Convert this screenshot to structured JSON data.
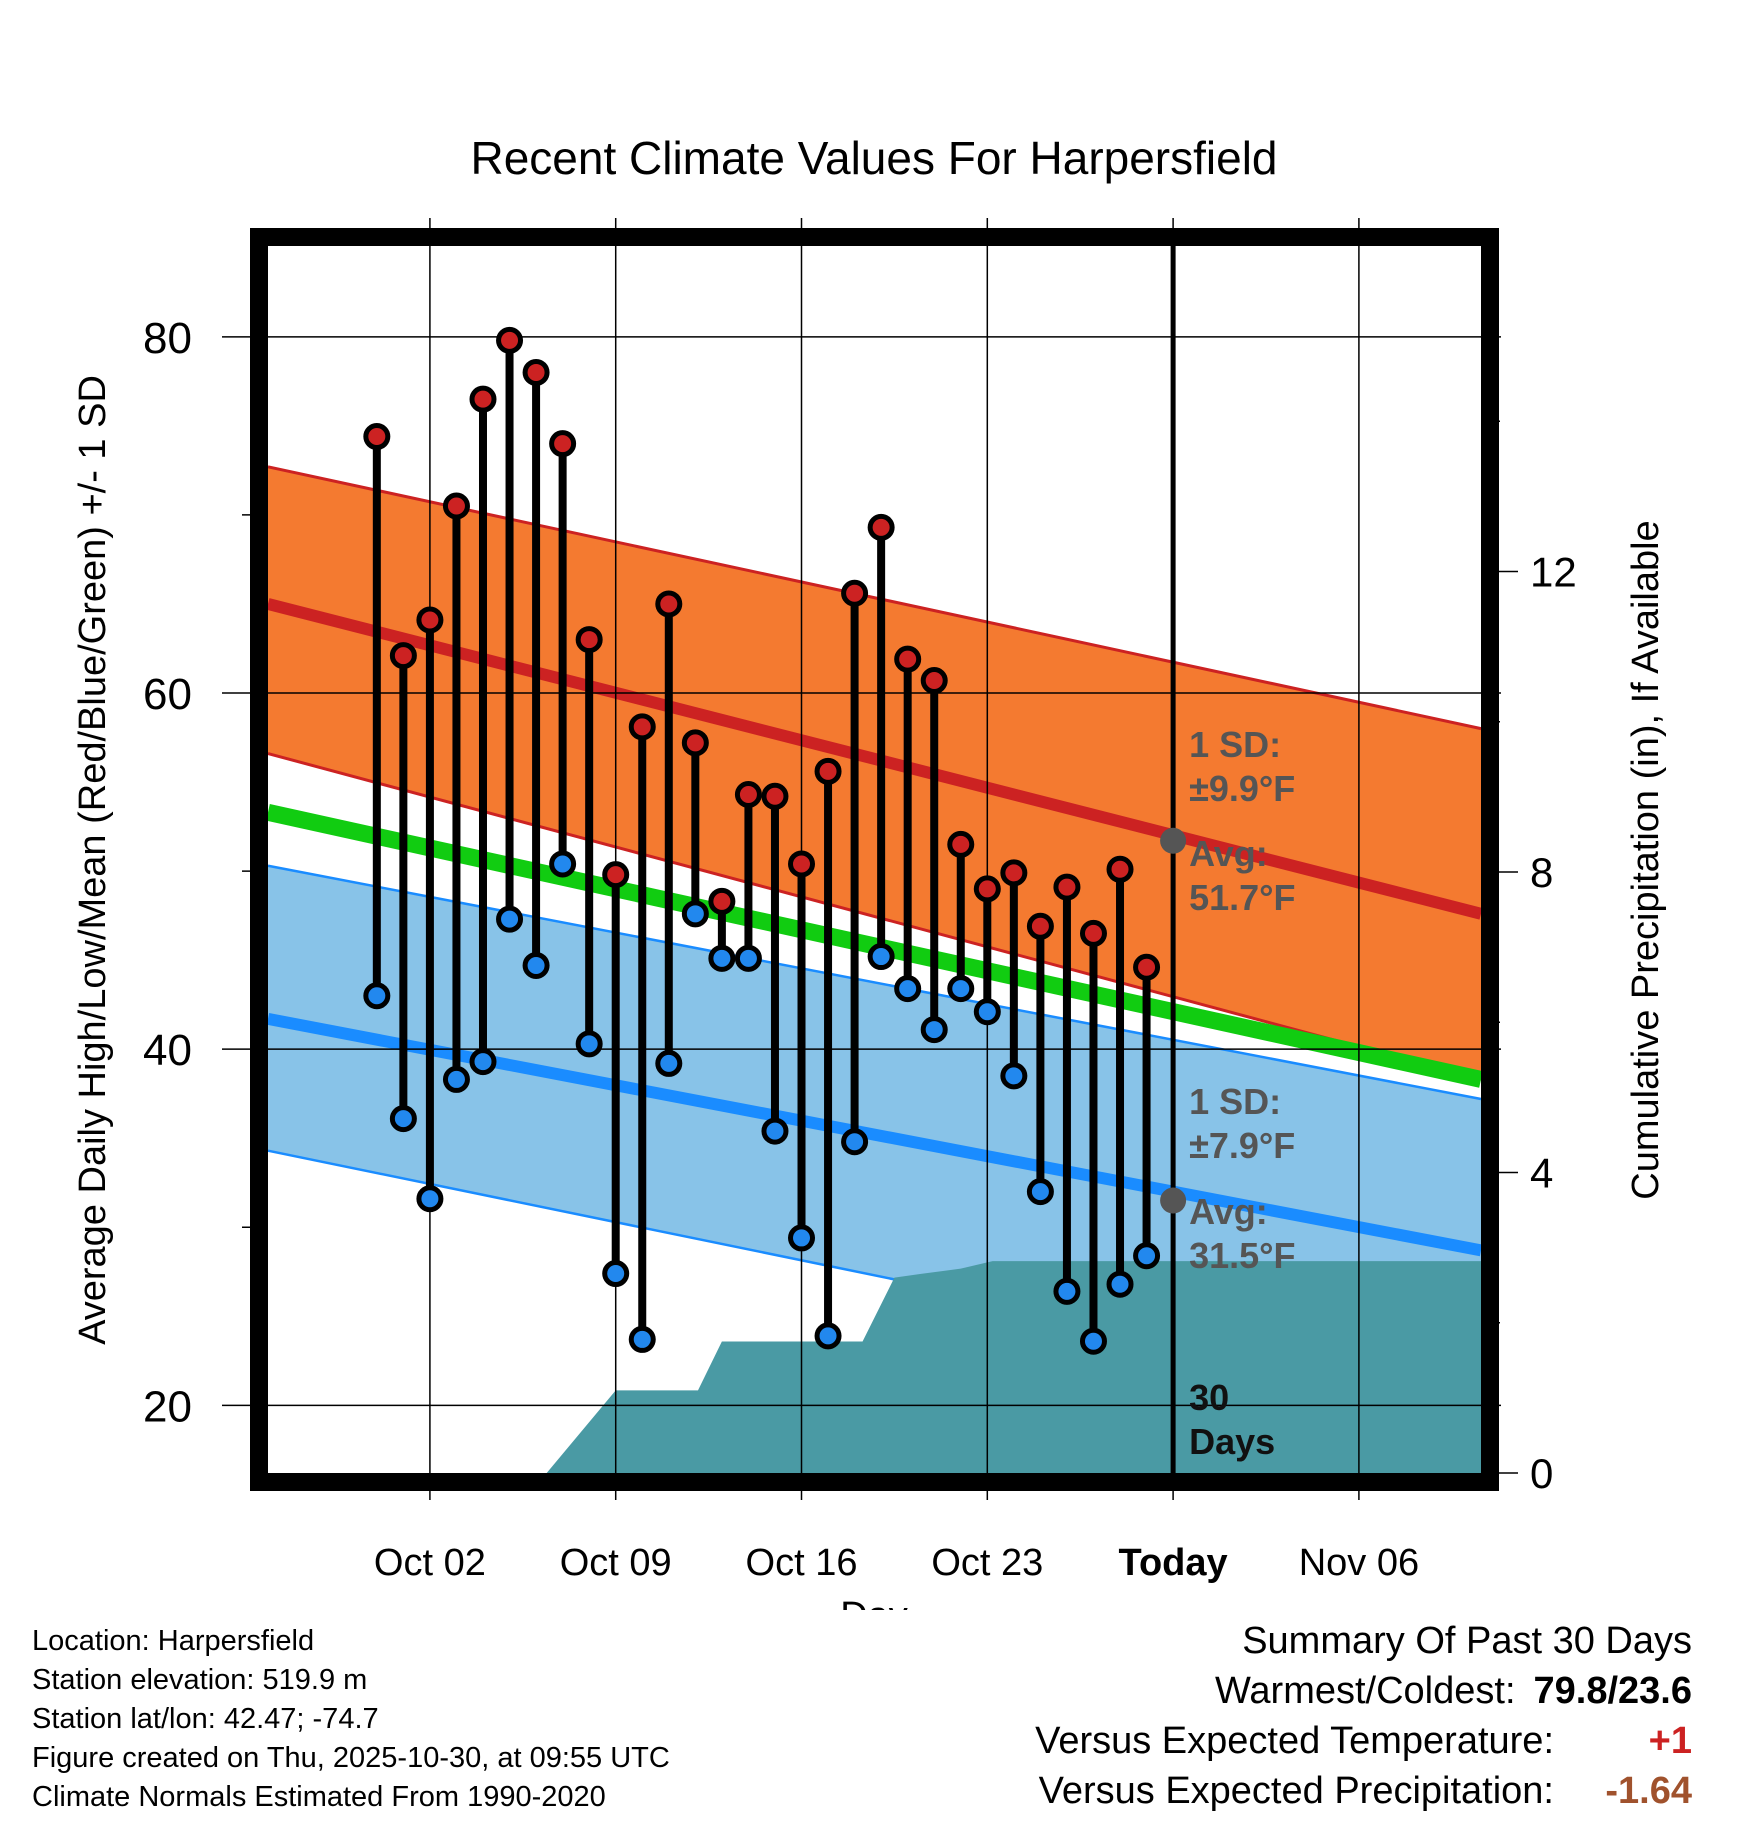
{
  "chart_data": {
    "type": "line",
    "title": "Recent Climate Values For Harpersfield",
    "xlabel": "Day",
    "ylabel": "Average Daily High/Low/Mean (Red/Blue/Green) +/- 1 SD",
    "y2label": "Cumulative Precipitation (in), If Available",
    "x_range_days": [
      -34.1,
      11.6
    ],
    "ylim": [
      16.2,
      85.1
    ],
    "y2lim": [
      0,
      16.333
    ],
    "y_ticks": [
      "20",
      "40",
      "60",
      "80"
    ],
    "y2_ticks": [
      "0",
      "4",
      "8",
      "12"
    ],
    "x_tick_labels": [
      {
        "day": -28,
        "label": "Oct 02"
      },
      {
        "day": -21,
        "label": "Oct 09"
      },
      {
        "day": -14,
        "label": "Oct 16"
      },
      {
        "day": -7,
        "label": "Oct 23"
      },
      {
        "day": 0,
        "label": "Today"
      },
      {
        "day": 7,
        "label": "Nov 06"
      }
    ],
    "normals": {
      "high_avg": {
        "start": 65.0,
        "end": 47.6
      },
      "high_sd_upper": {
        "start": 72.7,
        "end": 58.0
      },
      "high_sd_lower": {
        "start": 56.6,
        "end": 38.3
      },
      "mean_avg": {
        "start": 53.3,
        "end": 38.3
      },
      "low_avg": {
        "start": 41.7,
        "end": 28.7
      },
      "low_sd_upper": {
        "start": 50.3,
        "end": 37.2
      },
      "low_sd_lower": {
        "start": 34.3,
        "end": 20.3
      }
    },
    "series": [
      {
        "name": "Daily High",
        "color": "#cc2222",
        "days": [
          -30,
          -29,
          -28,
          -27,
          -26,
          -25,
          -24,
          -23,
          -22,
          -21,
          -20,
          -19,
          -18,
          -17,
          -16,
          -15,
          -14,
          -13,
          -12,
          -11,
          -10,
          -9,
          -8,
          -7,
          -6,
          -5,
          -4,
          -3,
          -2,
          -1
        ],
        "values": [
          74.4,
          62.1,
          64.1,
          70.5,
          76.5,
          79.8,
          78.0,
          74.0,
          63.0,
          49.8,
          58.1,
          65.0,
          57.2,
          48.3,
          54.3,
          54.2,
          50.4,
          55.6,
          65.6,
          69.3,
          61.9,
          60.7,
          51.5,
          49.0,
          49.9,
          46.9,
          49.1,
          46.5,
          50.1,
          44.6
        ]
      },
      {
        "name": "Daily Low",
        "color": "#2288ee",
        "days": [
          -30,
          -29,
          -28,
          -27,
          -26,
          -25,
          -24,
          -23,
          -22,
          -21,
          -20,
          -19,
          -18,
          -17,
          -16,
          -15,
          -14,
          -13,
          -12,
          -11,
          -10,
          -9,
          -8,
          -7,
          -6,
          -5,
          -4,
          -3,
          -2,
          -1
        ],
        "values": [
          43.0,
          36.1,
          31.6,
          38.3,
          39.3,
          47.3,
          44.7,
          50.4,
          40.3,
          27.4,
          23.7,
          39.2,
          47.6,
          45.1,
          45.1,
          35.4,
          29.4,
          23.9,
          34.8,
          45.2,
          43.4,
          41.1,
          43.4,
          42.1,
          38.5,
          32.0,
          26.4,
          23.6,
          26.8,
          28.4
        ]
      }
    ],
    "precip_cumulative": {
      "days": [
        -34.1,
        -23.6,
        -21,
        -17.9,
        -17,
        -14,
        -12.5,
        -11.7,
        -10.5,
        -9.5,
        -8,
        -6.8,
        -6,
        0,
        11.6
      ],
      "values": [
        0,
        0,
        1.1,
        1.1,
        1.75,
        1.75,
        1.75,
        1.75,
        2.6,
        2.65,
        2.72,
        2.82,
        2.82,
        2.82,
        2.82
      ]
    },
    "annotations": {
      "high_sd_label": "1 SD:",
      "high_sd_value": "±9.9°F",
      "high_avg_label": "Avg:",
      "high_avg_value": "51.7°F",
      "low_sd_label": "1 SD:",
      "low_sd_value": "±7.9°F",
      "low_avg_label": "Avg:",
      "low_avg_value": "31.5°F",
      "period_number": "30",
      "period_unit": "Days",
      "high_avg_today": 51.7,
      "low_avg_today": 31.5
    }
  },
  "footer": {
    "location": "Location: Harpersfield",
    "elevation": "Station elevation: 519.9 m",
    "latlon": "Station lat/lon: 42.47; -74.7",
    "created": "Figure created on Thu, 2025-10-30, at 09:55 UTC",
    "normals": "Climate Normals Estimated From 1990-2020"
  },
  "summary": {
    "heading": "Summary Of Past 30 Days",
    "warm_cold_label": "Warmest/Coldest:",
    "warm_cold_value": "79.8/23.6",
    "temp_label": "Versus Expected Temperature:",
    "temp_value": "+1",
    "precip_label": "Versus Expected Precipitation:",
    "precip_value": "-1.64"
  },
  "colors": {
    "high_band": "#f47a30",
    "low_band": "#88c3e8",
    "high_line": "#cc2222",
    "low_line": "#1a8cff",
    "mean_line": "#11cc11",
    "precip": "#4a9aa4",
    "annotation": "#555555",
    "temp_value": "#cc2222",
    "precip_value": "#a0522d"
  }
}
